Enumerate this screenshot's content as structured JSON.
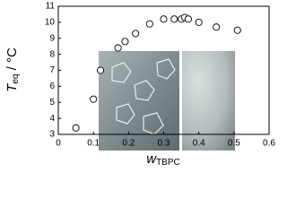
{
  "chart_data": {
    "type": "scatter",
    "x_label": {
      "symbol": "w",
      "subscript": "TBPC"
    },
    "y_label": {
      "symbol": "T",
      "subscript": "eq",
      "unit": " / °C"
    },
    "x": [
      0.05,
      0.1,
      0.12,
      0.17,
      0.19,
      0.22,
      0.26,
      0.3,
      0.33,
      0.35,
      0.36,
      0.37,
      0.4,
      0.45,
      0.51
    ],
    "values": [
      3.4,
      5.2,
      7.0,
      8.4,
      8.8,
      9.3,
      9.9,
      10.2,
      10.2,
      10.2,
      10.3,
      10.2,
      10.0,
      9.7,
      9.5
    ],
    "color": "#000000",
    "xlim": [
      0,
      0.6
    ],
    "xticks": [
      0,
      0.1,
      0.2,
      0.3,
      0.4,
      0.5,
      0.6
    ],
    "ylim": [
      3,
      11
    ],
    "yticks": [
      3,
      4,
      5,
      6,
      7,
      8,
      9,
      10,
      11
    ]
  }
}
